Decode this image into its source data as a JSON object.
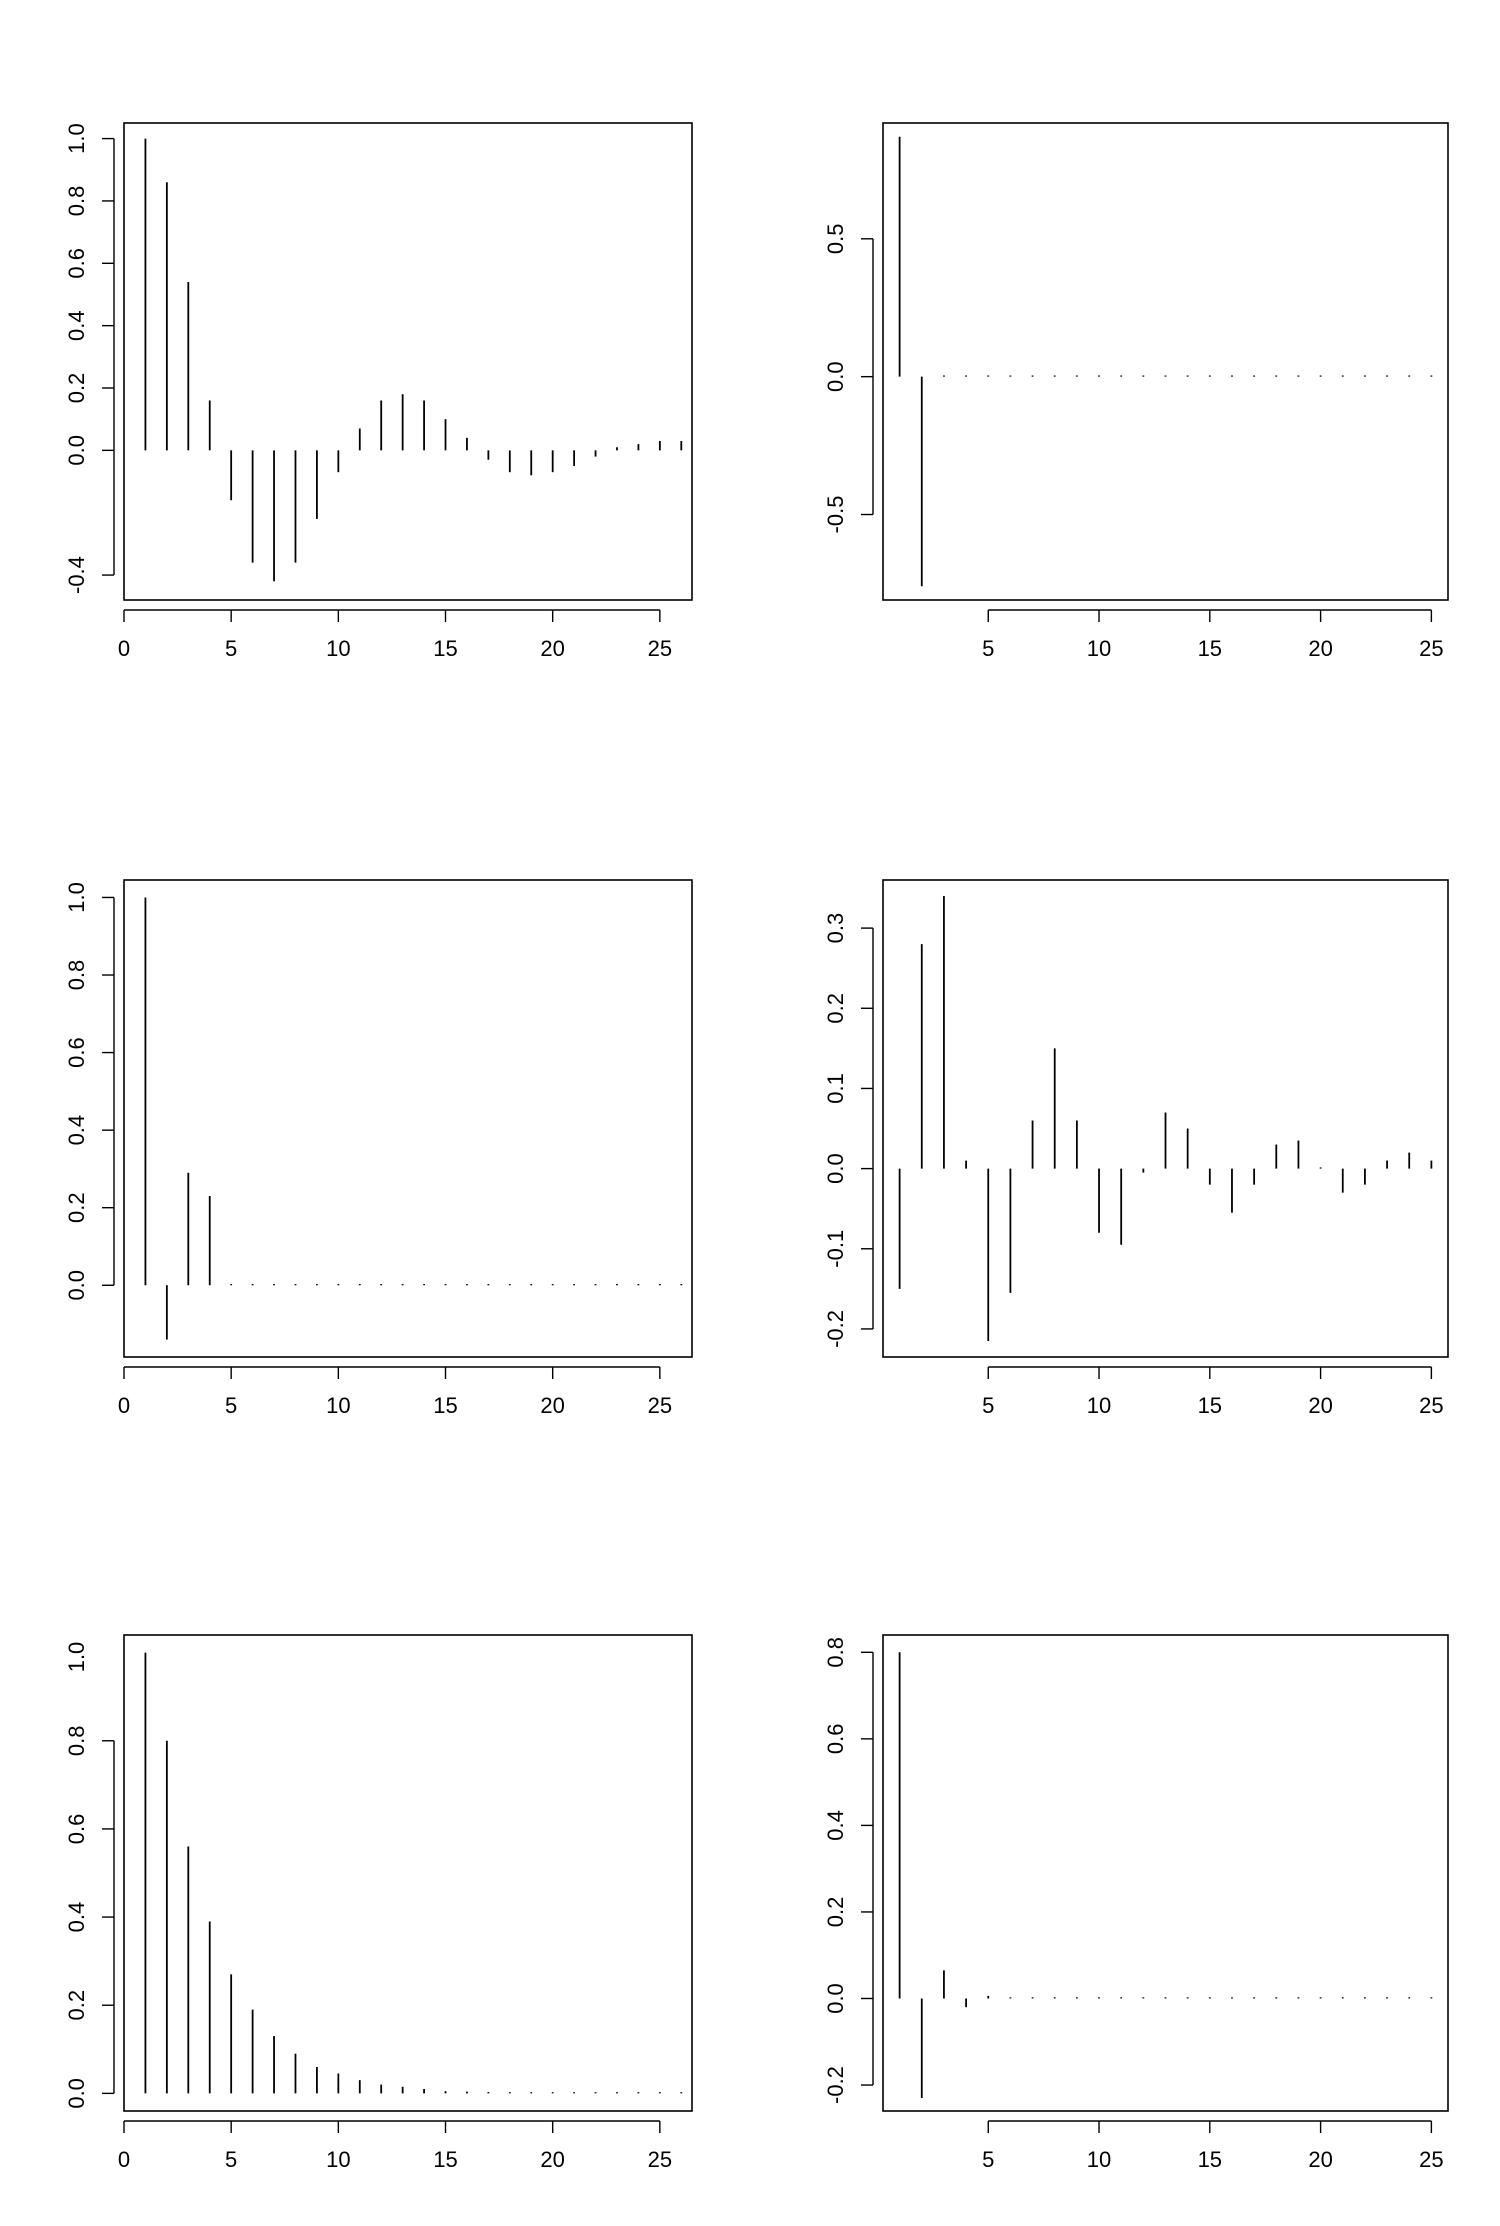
{
  "chart_data": [
    {
      "type": "bar",
      "x": [
        1,
        2,
        3,
        4,
        5,
        6,
        7,
        8,
        9,
        10,
        11,
        12,
        13,
        14,
        15,
        16,
        17,
        18,
        19,
        20,
        21,
        22,
        23,
        24,
        25,
        26
      ],
      "values": [
        1.0,
        0.86,
        0.54,
        0.16,
        -0.16,
        -0.36,
        -0.42,
        -0.36,
        -0.22,
        -0.07,
        0.07,
        0.16,
        0.18,
        0.16,
        0.1,
        0.04,
        -0.03,
        -0.07,
        -0.08,
        -0.07,
        -0.05,
        -0.02,
        0.01,
        0.02,
        0.03,
        0.03
      ],
      "xlim": [
        0,
        26.5
      ],
      "ylim": [
        -0.48,
        1.05
      ],
      "xticks": [
        0,
        5,
        10,
        15,
        20,
        25
      ],
      "xtick_labels": [
        "0",
        "5",
        "10",
        "15",
        "20",
        "25"
      ],
      "yticks": [
        -0.4,
        0.0,
        0.2,
        0.4,
        0.6,
        0.8,
        1.0
      ],
      "ytick_labels": [
        "-0.4",
        "0.0",
        "0.2",
        "0.4",
        "0.6",
        "0.8",
        "1.0"
      ],
      "title": "",
      "xlabel": "",
      "ylabel": "",
      "grid": false
    },
    {
      "type": "bar",
      "x": [
        1,
        2,
        3,
        4,
        5,
        6,
        7,
        8,
        9,
        10,
        11,
        12,
        13,
        14,
        15,
        16,
        17,
        18,
        19,
        20,
        21,
        22,
        23,
        24,
        25
      ],
      "values": [
        0.87,
        -0.76,
        0,
        0,
        0,
        0,
        0,
        0,
        0,
        0,
        0,
        0,
        0,
        0,
        0,
        0,
        0,
        0,
        0,
        0,
        0,
        0,
        0,
        0,
        0
      ],
      "xlim": [
        0.25,
        25.75
      ],
      "ylim": [
        -0.81,
        0.92
      ],
      "xticks": [
        5,
        10,
        15,
        20,
        25
      ],
      "xtick_labels": [
        "5",
        "10",
        "15",
        "20",
        "25"
      ],
      "yticks": [
        -0.5,
        0.0,
        0.5
      ],
      "ytick_labels": [
        "-0.5",
        "0.0",
        "0.5"
      ],
      "title": "",
      "xlabel": "",
      "ylabel": "",
      "grid": false
    },
    {
      "type": "bar",
      "x": [
        1,
        2,
        3,
        4,
        5,
        6,
        7,
        8,
        9,
        10,
        11,
        12,
        13,
        14,
        15,
        16,
        17,
        18,
        19,
        20,
        21,
        22,
        23,
        24,
        25,
        26
      ],
      "values": [
        1.0,
        -0.14,
        0.29,
        0.23,
        0,
        0,
        0,
        0,
        0,
        0,
        0,
        0,
        0,
        0,
        0,
        0,
        0,
        0,
        0,
        0,
        0,
        0,
        0,
        0,
        0,
        0
      ],
      "xlim": [
        0,
        26.5
      ],
      "ylim": [
        -0.185,
        1.045
      ],
      "xticks": [
        0,
        5,
        10,
        15,
        20,
        25
      ],
      "xtick_labels": [
        "0",
        "5",
        "10",
        "15",
        "20",
        "25"
      ],
      "yticks": [
        0.0,
        0.2,
        0.4,
        0.6,
        0.8,
        1.0
      ],
      "ytick_labels": [
        "0.0",
        "0.2",
        "0.4",
        "0.6",
        "0.8",
        "1.0"
      ],
      "title": "",
      "xlabel": "",
      "ylabel": "",
      "grid": false
    },
    {
      "type": "bar",
      "x": [
        1,
        2,
        3,
        4,
        5,
        6,
        7,
        8,
        9,
        10,
        11,
        12,
        13,
        14,
        15,
        16,
        17,
        18,
        19,
        20,
        21,
        22,
        23,
        24,
        25
      ],
      "values": [
        -0.15,
        0.28,
        0.34,
        0.01,
        -0.215,
        -0.155,
        0.06,
        0.15,
        0.06,
        -0.08,
        -0.095,
        -0.005,
        0.07,
        0.05,
        -0.02,
        -0.055,
        -0.02,
        0.03,
        0.035,
        0.0,
        -0.03,
        -0.02,
        0.01,
        0.02,
        0.01
      ],
      "xlim": [
        0.25,
        25.75
      ],
      "ylim": [
        -0.235,
        0.36
      ],
      "xticks": [
        5,
        10,
        15,
        20,
        25
      ],
      "xtick_labels": [
        "5",
        "10",
        "15",
        "20",
        "25"
      ],
      "yticks": [
        -0.2,
        -0.1,
        0.0,
        0.1,
        0.2,
        0.3
      ],
      "ytick_labels": [
        "-0.2",
        "-0.1",
        "0.0",
        "0.1",
        "0.2",
        "0.3"
      ],
      "title": "",
      "xlabel": "",
      "ylabel": "",
      "grid": false
    },
    {
      "type": "bar",
      "x": [
        1,
        2,
        3,
        4,
        5,
        6,
        7,
        8,
        9,
        10,
        11,
        12,
        13,
        14,
        15,
        16,
        17,
        18,
        19,
        20,
        21,
        22,
        23,
        24,
        25,
        26
      ],
      "values": [
        1.0,
        0.8,
        0.56,
        0.39,
        0.27,
        0.19,
        0.13,
        0.09,
        0.06,
        0.045,
        0.03,
        0.02,
        0.015,
        0.01,
        0.005,
        0.004,
        0.003,
        0.002,
        0.001,
        0.001,
        0.001,
        0.0,
        0.0,
        0.0,
        0.0,
        0.0
      ],
      "xlim": [
        0,
        26.5
      ],
      "ylim": [
        -0.04,
        1.04
      ],
      "xticks": [
        0,
        5,
        10,
        15,
        20,
        25
      ],
      "xtick_labels": [
        "0",
        "5",
        "10",
        "15",
        "20",
        "25"
      ],
      "yticks": [
        0.0,
        0.2,
        0.4,
        0.6,
        0.8
      ],
      "ytick_labels": [
        "0.0",
        "0.2",
        "0.4",
        "0.6",
        "0.8"
      ],
      "extra_ytick_labels": [
        "1.0"
      ],
      "title": "",
      "xlabel": "",
      "ylabel": "",
      "grid": false
    },
    {
      "type": "bar",
      "x": [
        1,
        2,
        3,
        4,
        5,
        6,
        7,
        8,
        9,
        10,
        11,
        12,
        13,
        14,
        15,
        16,
        17,
        18,
        19,
        20,
        21,
        22,
        23,
        24,
        25
      ],
      "values": [
        0.8,
        -0.23,
        0.065,
        -0.02,
        0.006,
        0,
        0,
        0,
        0,
        0,
        0,
        0,
        0,
        0,
        0,
        0,
        0,
        0,
        0,
        0,
        0,
        0,
        0,
        0,
        0
      ],
      "xlim": [
        0.25,
        25.75
      ],
      "ylim": [
        -0.26,
        0.84
      ],
      "xticks": [
        5,
        10,
        15,
        20,
        25
      ],
      "xtick_labels": [
        "5",
        "10",
        "15",
        "20",
        "25"
      ],
      "yticks": [
        -0.2,
        0.0,
        0.2,
        0.4,
        0.6,
        0.8
      ],
      "ytick_labels": [
        "-0.2",
        "0.0",
        "0.2",
        "0.4",
        "0.6",
        "0.8"
      ],
      "title": "",
      "xlabel": "",
      "ylabel": "",
      "grid": false
    }
  ]
}
